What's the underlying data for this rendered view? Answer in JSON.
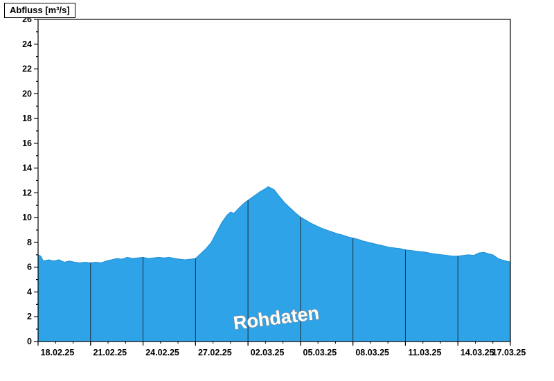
{
  "title": "Abfluss [m³/s]",
  "watermark": "Rohdaten",
  "colors": {
    "area_fill": "#2FA3E8",
    "area_edge": "#1F8FD6",
    "grid_line": "#1a1a1a",
    "axis": "#000000",
    "watermark_fill": "#ffffff",
    "watermark_outline": "#8f8f8f"
  },
  "chart_data": {
    "type": "area",
    "title": "Abfluss [m³/s]",
    "ylabel": "Abfluss [m³/s]",
    "xlabel": "",
    "ylim": [
      0,
      26
    ],
    "y_tick_step": 2,
    "y_minor_step": 1,
    "y_tick_labels": [
      "0",
      "2",
      "4",
      "6",
      "8",
      "10",
      "12",
      "14",
      "16",
      "18",
      "20",
      "22",
      "24",
      "26"
    ],
    "x_span_days": 27,
    "x_minor_step_days": 1,
    "x_ticks": [
      {
        "day": 0,
        "label": "18.02.25"
      },
      {
        "day": 3,
        "label": "21.02.25"
      },
      {
        "day": 6,
        "label": "24.02.25"
      },
      {
        "day": 9,
        "label": "27.02.25"
      },
      {
        "day": 12,
        "label": "02.03.25"
      },
      {
        "day": 15,
        "label": "05.03.25"
      },
      {
        "day": 18,
        "label": "08.03.25"
      },
      {
        "day": 21,
        "label": "11.03.25"
      },
      {
        "day": 24,
        "label": "14.03.25"
      },
      {
        "day": 27,
        "label": "17.03.25"
      }
    ],
    "grid": "vertical-at-major-ticks-clipped-to-area",
    "legend": "none",
    "series": [
      {
        "name": "Rohdaten",
        "x_days": [
          0,
          0.15,
          0.3,
          0.6,
          0.9,
          1.2,
          1.5,
          1.8,
          2.1,
          2.4,
          2.7,
          3.0,
          3.3,
          3.6,
          3.9,
          4.2,
          4.5,
          4.8,
          5.1,
          5.4,
          5.7,
          6.0,
          6.3,
          6.6,
          6.9,
          7.2,
          7.5,
          7.8,
          8.1,
          8.4,
          8.7,
          9.0,
          9.3,
          9.6,
          9.9,
          10.2,
          10.5,
          10.8,
          11.0,
          11.2,
          11.5,
          11.8,
          12.1,
          12.4,
          12.7,
          13.0,
          13.15,
          13.3,
          13.5,
          13.8,
          14.1,
          14.4,
          14.7,
          15.0,
          15.3,
          15.6,
          15.9,
          16.2,
          16.5,
          16.8,
          17.1,
          17.4,
          17.7,
          18.0,
          18.3,
          18.6,
          18.9,
          19.2,
          19.5,
          19.8,
          20.1,
          20.4,
          20.7,
          21.0,
          21.3,
          21.6,
          21.9,
          22.2,
          22.5,
          22.8,
          23.1,
          23.4,
          23.7,
          24.0,
          24.3,
          24.6,
          24.9,
          25.2,
          25.5,
          25.7,
          26.0,
          26.3,
          26.6,
          26.9,
          27.0
        ],
        "values": [
          7.0,
          6.9,
          6.5,
          6.6,
          6.5,
          6.6,
          6.4,
          6.5,
          6.4,
          6.35,
          6.4,
          6.35,
          6.4,
          6.35,
          6.5,
          6.6,
          6.7,
          6.65,
          6.8,
          6.7,
          6.75,
          6.8,
          6.7,
          6.75,
          6.8,
          6.75,
          6.8,
          6.7,
          6.65,
          6.6,
          6.65,
          6.7,
          7.1,
          7.5,
          8.0,
          8.8,
          9.6,
          10.2,
          10.45,
          10.35,
          10.8,
          11.2,
          11.5,
          11.8,
          12.1,
          12.35,
          12.5,
          12.4,
          12.25,
          11.7,
          11.2,
          10.8,
          10.4,
          10.05,
          9.8,
          9.55,
          9.35,
          9.15,
          9.0,
          8.85,
          8.7,
          8.6,
          8.45,
          8.35,
          8.25,
          8.1,
          8.0,
          7.9,
          7.8,
          7.7,
          7.6,
          7.55,
          7.5,
          7.4,
          7.35,
          7.3,
          7.25,
          7.2,
          7.1,
          7.05,
          7.0,
          6.95,
          6.9,
          6.9,
          6.95,
          7.0,
          6.95,
          7.15,
          7.2,
          7.1,
          7.0,
          6.7,
          6.55,
          6.45,
          6.4
        ]
      }
    ]
  }
}
